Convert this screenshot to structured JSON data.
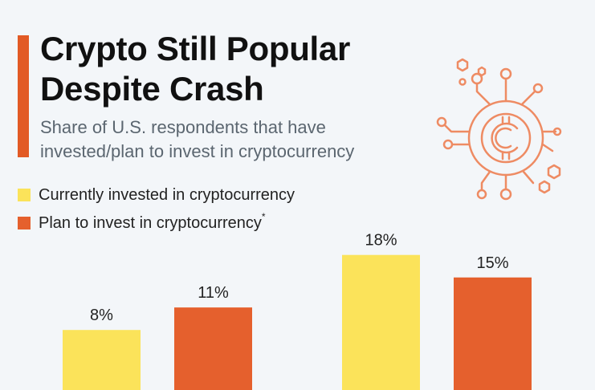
{
  "header": {
    "title_line1": "Crypto Still Popular",
    "title_line2": "Despite Crash",
    "subtitle_line1": "Share of U.S. respondents that have",
    "subtitle_line2": "invested/plan to invest in cryptocurrency"
  },
  "colors": {
    "accent": "#e25a25",
    "invested": "#fbe35a",
    "plan": "#e5602d",
    "icon_stroke": "#ee8b63"
  },
  "icon": "crypto-coin-circuit-icon",
  "chart_data": {
    "type": "bar",
    "categories": [
      "",
      ""
    ],
    "series": [
      {
        "name": "Currently invested in cryptocurrency",
        "values": [
          8,
          18
        ],
        "labels": [
          "8%",
          "18%"
        ]
      },
      {
        "name": "Plan to invest in cryptocurrency",
        "footnote": "*",
        "values": [
          11,
          15
        ],
        "labels": [
          "11%",
          "15%"
        ]
      }
    ],
    "title": "Crypto Still Popular Despite Crash",
    "subtitle": "Share of U.S. respondents that have invested/plan to invest in cryptocurrency",
    "unit": "%",
    "ylim": [
      0,
      18
    ],
    "grid": false,
    "legend_position": "top-left"
  }
}
